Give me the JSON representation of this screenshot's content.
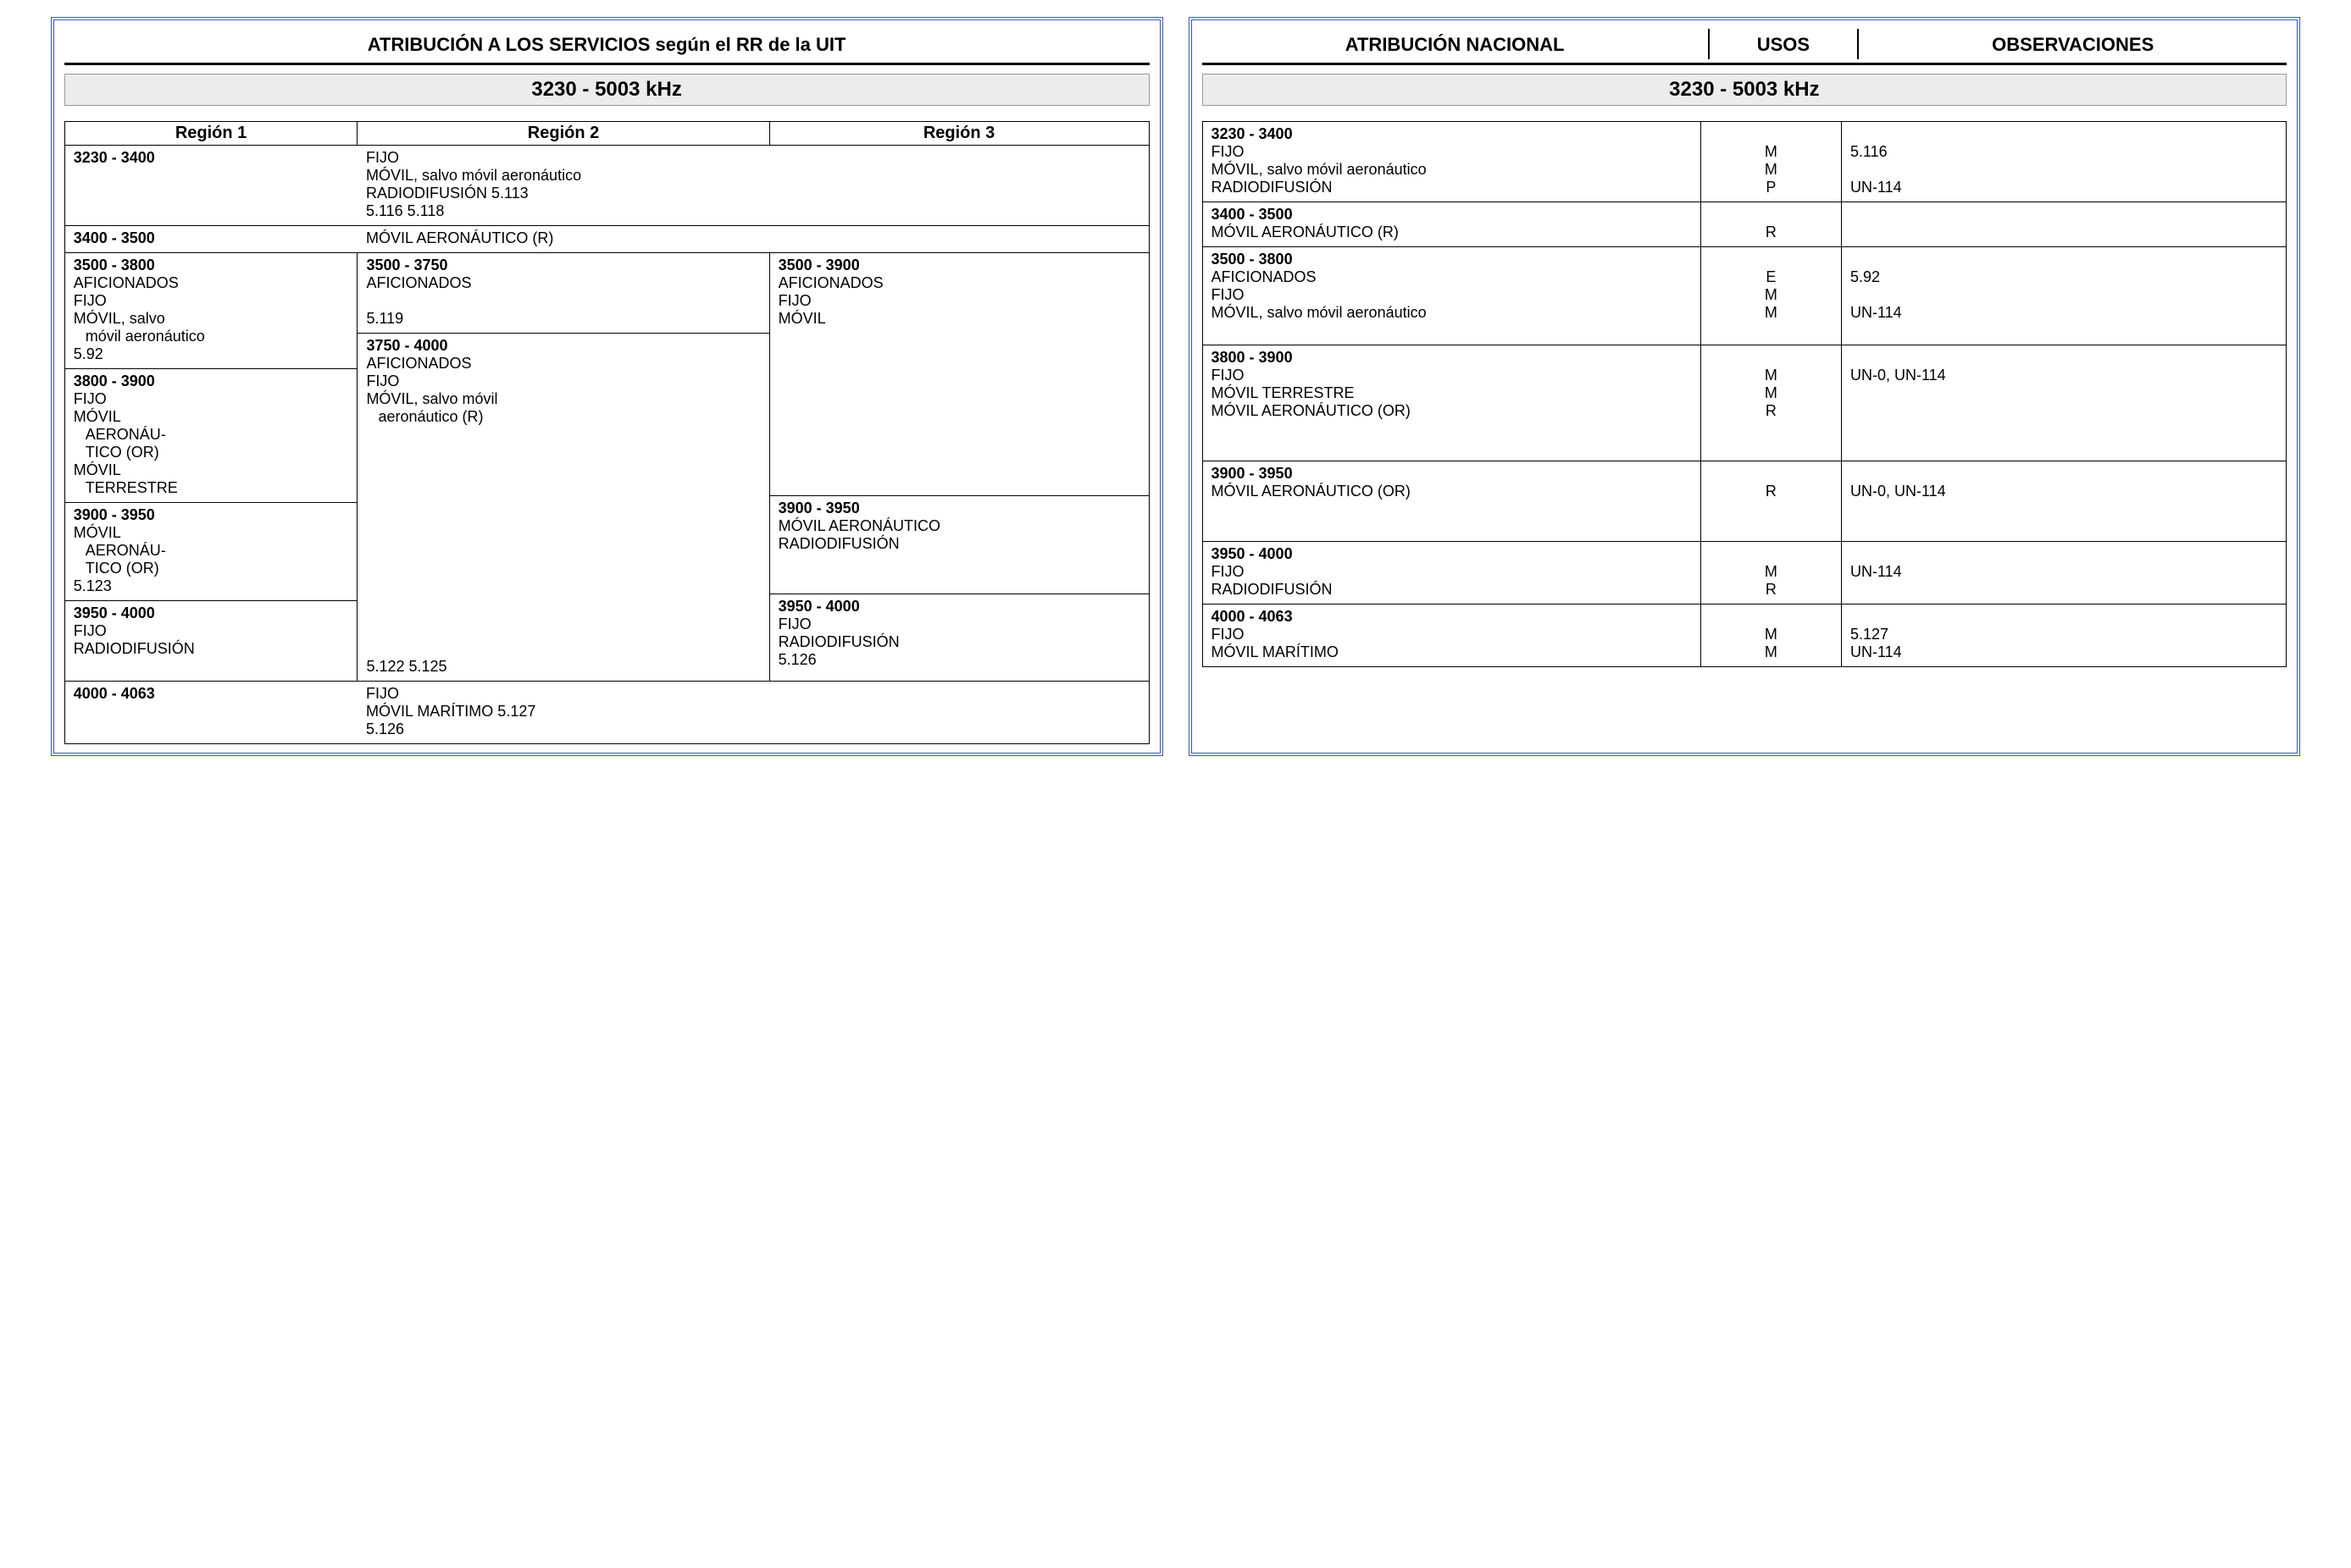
{
  "left": {
    "title": "ATRIBUCIÓN A LOS SERVICIOS según el RR de la UIT",
    "band": "3230 - 5003 kHz",
    "headers": [
      "Región 1",
      "Región 2",
      "Región 3"
    ],
    "r1_range": "3230 - 3400",
    "r1_lines": [
      "FIJO",
      "MÓVIL, salvo móvil aeronáutico",
      "RADIODIFUSIÓN 5.113",
      "5.116 5.118"
    ],
    "r2_range": "3400 - 3500",
    "r2_line": "MÓVIL AERONÁUTICO (R)",
    "c1a_range": "3500 - 3800",
    "c1a_lines": [
      "AFICIONADOS",
      "FIJO",
      "MÓVIL, salvo",
      "  móvil aeronáutico",
      "5.92"
    ],
    "c1b_range": "3800 - 3900",
    "c1b_lines": [
      "FIJO",
      "MÓVIL",
      "  AERONÁU-",
      "  TICO (OR)",
      "MÓVIL",
      "  TERRESTRE"
    ],
    "c1c_range": "3900 - 3950",
    "c1c_lines": [
      "MÓVIL",
      "  AERONÁU-",
      "  TICO (OR)",
      "5.123"
    ],
    "c1d_range": "3950 - 4000",
    "c1d_lines": [
      "FIJO",
      "RADIODIFUSIÓN"
    ],
    "c2a_range": "3500 - 3750",
    "c2a_lines": [
      "AFICIONADOS",
      "",
      "5.119"
    ],
    "c2b_range": "3750 - 4000",
    "c2b_lines": [
      "AFICIONADOS",
      "FIJO",
      "MÓVIL, salvo móvil",
      "  aeronáutico (R)",
      "",
      "",
      "",
      "",
      "",
      "",
      "",
      "",
      "",
      "",
      "5.122 5.125"
    ],
    "c3a_range": "3500 - 3900",
    "c3a_lines": [
      "AFICIONADOS",
      "FIJO",
      "MÓVIL"
    ],
    "c3b_range": "3900 - 3950",
    "c3b_lines": [
      "MÓVIL AERONÁUTICO",
      "RADIODIFUSIÓN"
    ],
    "c3c_range": "3950 - 4000",
    "c3c_lines": [
      "FIJO",
      "RADIODIFUSIÓN",
      "5.126"
    ],
    "r4_range": "4000 - 4063",
    "r4_lines": [
      "FIJO",
      "MÓVIL MARÍTIMO 5.127",
      "5.126"
    ]
  },
  "right": {
    "h1": "ATRIBUCIÓN NACIONAL",
    "h2": "USOS",
    "h3": "OBSERVACIONES",
    "band": "3230 - 5003  kHz",
    "rows": [
      {
        "range": "3230 - 3400",
        "svc": [
          "FIJO",
          "MÓVIL, salvo móvil aeronáutico",
          "RADIODIFUSIÓN"
        ],
        "usos": [
          "M",
          "M",
          "P"
        ],
        "obs": [
          "5.116",
          "",
          "UN-114"
        ]
      },
      {
        "range": "3400 - 3500",
        "svc": [
          "MÓVIL AERONÁUTICO (R)"
        ],
        "usos": [
          "R"
        ],
        "obs": [
          ""
        ]
      },
      {
        "range": "3500 - 3800",
        "svc": [
          "AFICIONADOS",
          "FIJO",
          "MÓVIL, salvo móvil aeronáutico",
          ""
        ],
        "usos": [
          "E",
          "M",
          "M",
          ""
        ],
        "obs": [
          "5.92",
          "",
          "UN-114",
          ""
        ]
      },
      {
        "range": "3800 - 3900",
        "svc": [
          "FIJO",
          "MÓVIL TERRESTRE",
          "MÓVIL AERONÁUTICO (OR)",
          "",
          ""
        ],
        "usos": [
          "M",
          "M",
          "R",
          "",
          ""
        ],
        "obs": [
          "UN-0, UN-114",
          "",
          "",
          "",
          ""
        ]
      },
      {
        "range": "3900 - 3950",
        "svc": [
          "MÓVIL  AERONÁUTICO (OR)",
          "",
          ""
        ],
        "usos": [
          "R",
          "",
          ""
        ],
        "obs": [
          "UN-0, UN-114",
          "",
          ""
        ]
      },
      {
        "range": "3950 - 4000",
        "svc": [
          "FIJO",
          "RADIODIFUSIÓN"
        ],
        "usos": [
          "M",
          "R"
        ],
        "obs": [
          "UN-114",
          ""
        ]
      },
      {
        "range": "4000 - 4063",
        "svc": [
          "FIJO",
          "MÓVIL MARÍTIMO"
        ],
        "usos": [
          "M",
          "M"
        ],
        "obs": [
          "5.127",
          "UN-114"
        ]
      }
    ]
  }
}
